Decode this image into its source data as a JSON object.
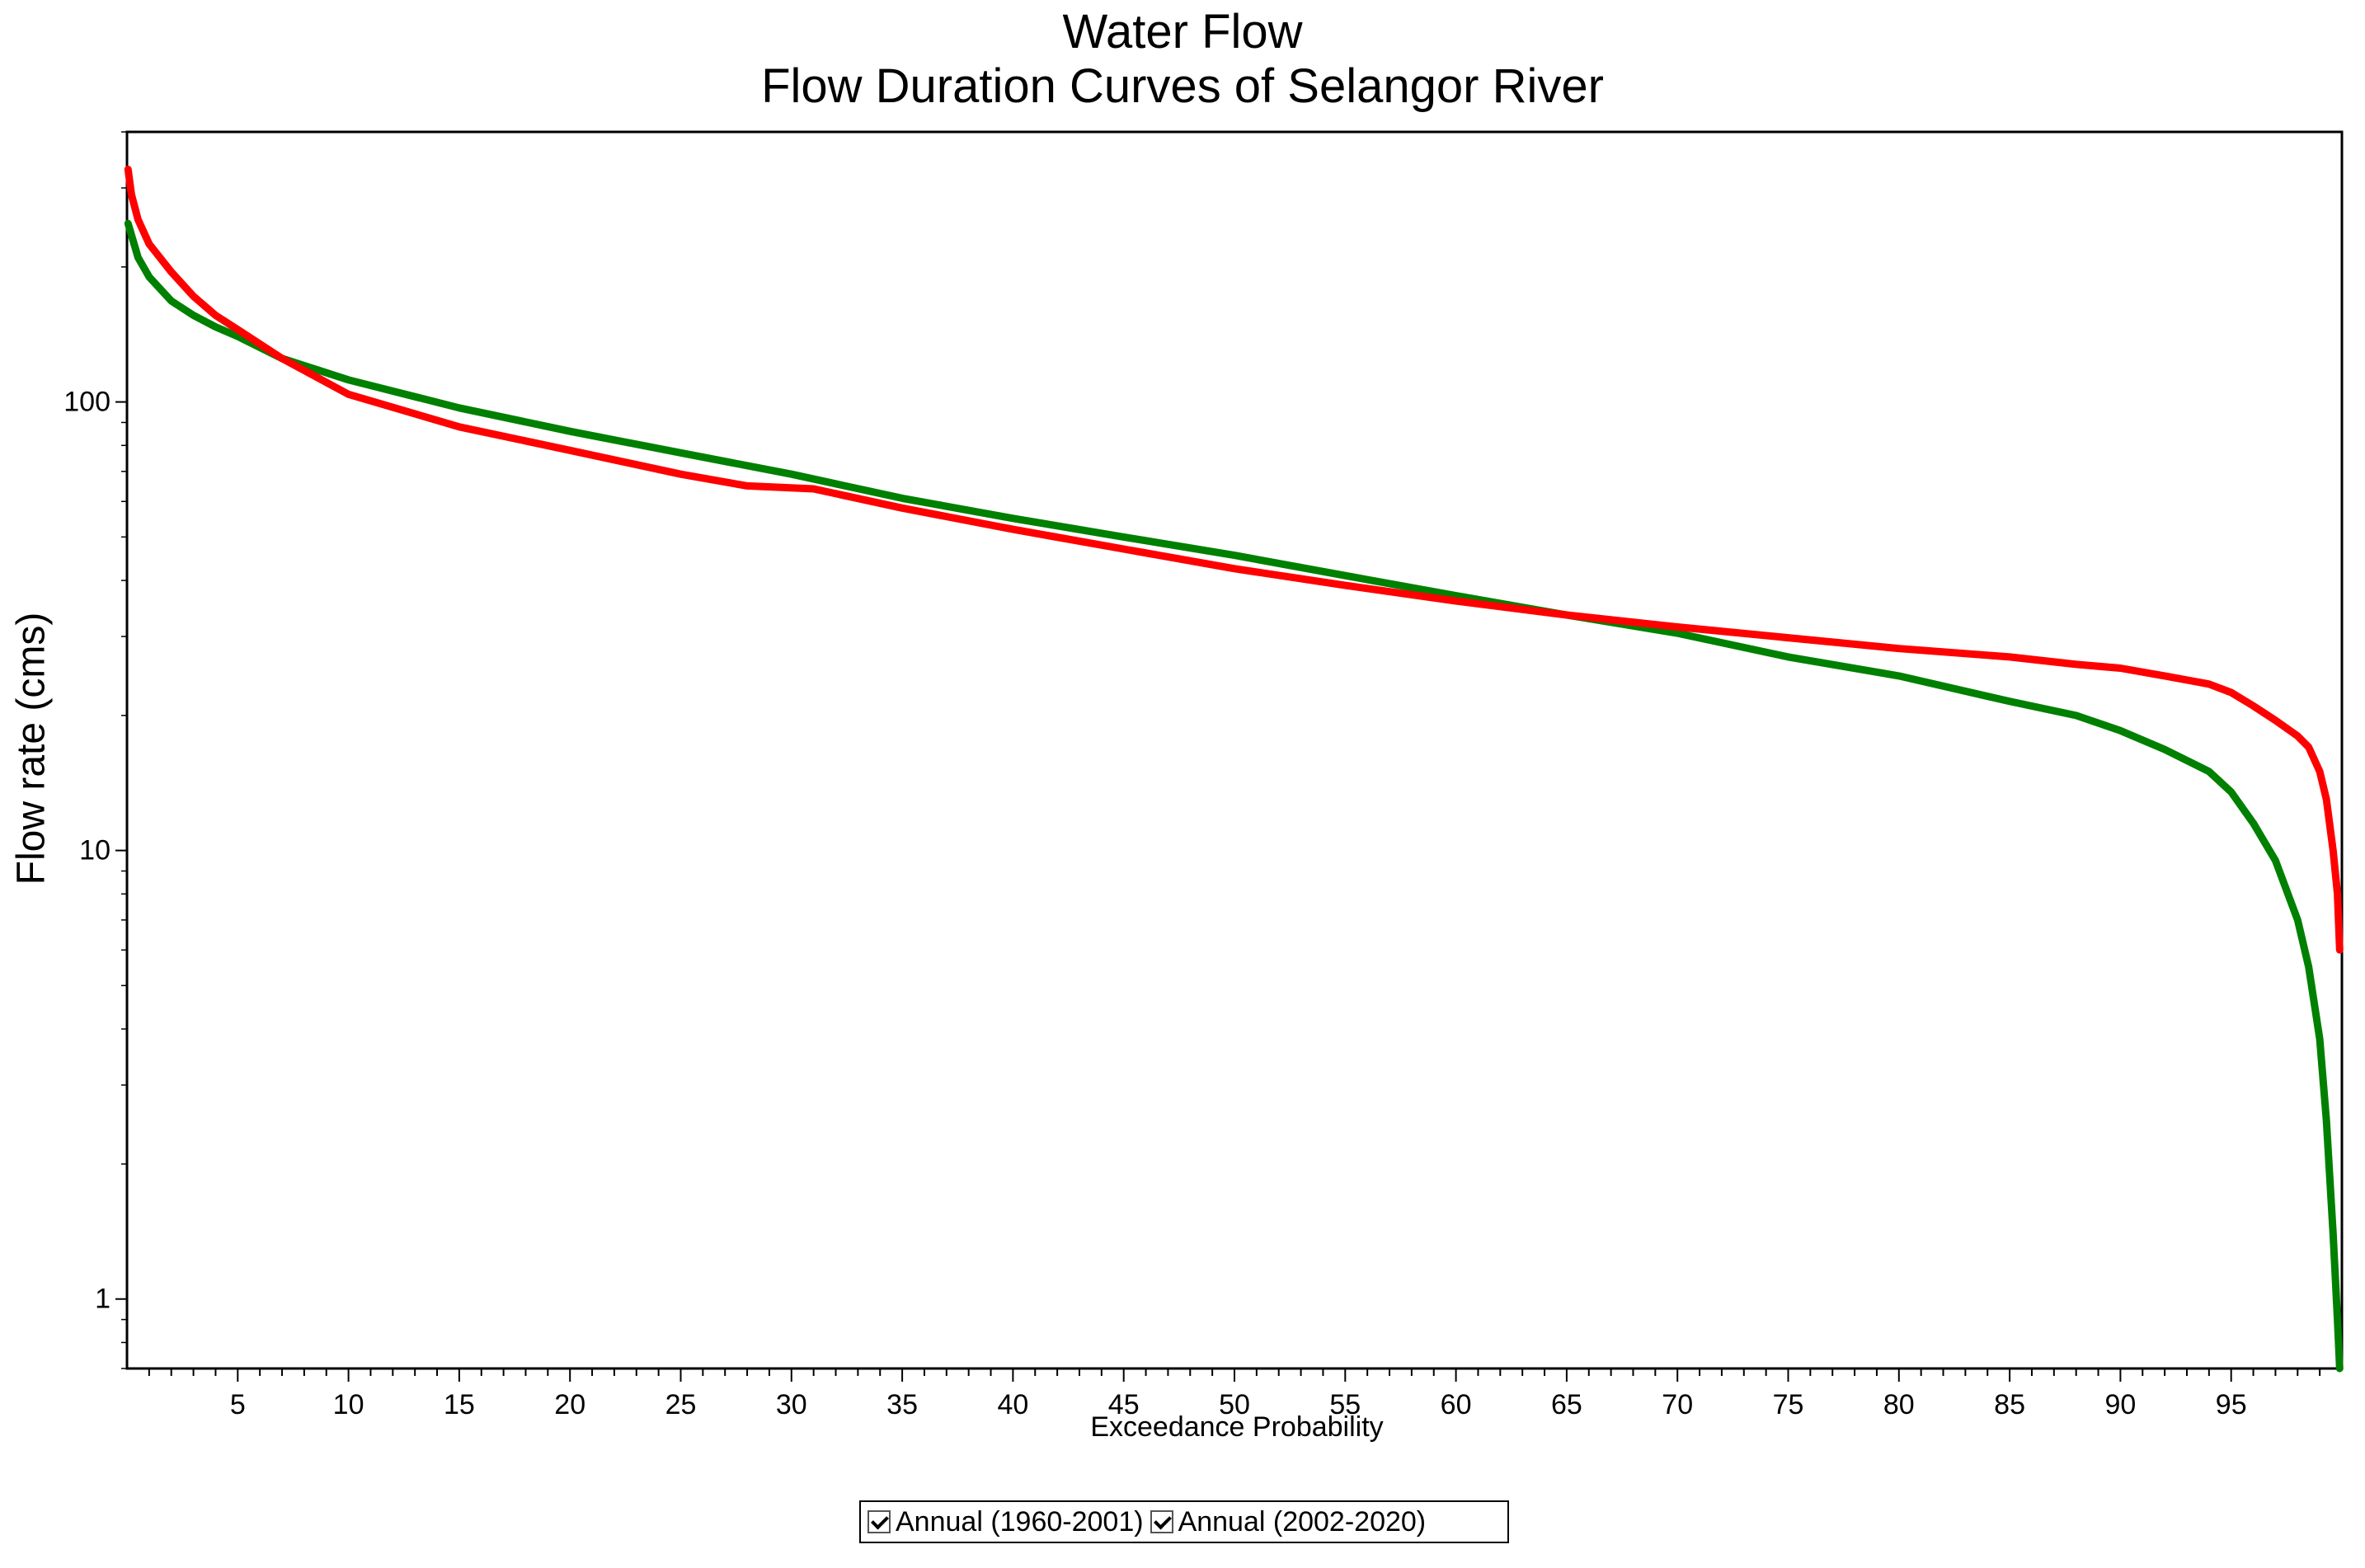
{
  "chart_data": {
    "type": "line",
    "title": "Water Flow",
    "subtitle": "Flow Duration Curves of Selangor River",
    "xlabel": "Exceedance Probability",
    "ylabel": "Flow rate (cms)",
    "xlim": [
      0,
      100
    ],
    "ylim": [
      0.7,
      400
    ],
    "yscale": "log",
    "x_ticks": [
      5,
      10,
      15,
      20,
      25,
      30,
      35,
      40,
      45,
      50,
      55,
      60,
      65,
      70,
      75,
      80,
      85,
      90,
      95
    ],
    "x_tick_labels": [
      "5",
      "10",
      "15",
      "20",
      "25",
      "30",
      "35",
      "40",
      "45",
      "50",
      "55",
      "60",
      "65",
      "70",
      "75",
      "80",
      "85",
      "90",
      "95"
    ],
    "y_ticks": [
      1,
      10,
      100
    ],
    "y_tick_labels": [
      "1",
      "10",
      "100"
    ],
    "grid": false,
    "legend_position": "bottom-center",
    "series": [
      {
        "name": "Annual (1960-2001)",
        "color": "#008000",
        "x": [
          0.05,
          0.5,
          1,
          2,
          3,
          4,
          5,
          7,
          10,
          15,
          20,
          25,
          30,
          35,
          40,
          45,
          50,
          55,
          60,
          65,
          70,
          75,
          80,
          85,
          88,
          90,
          92,
          94,
          95,
          96,
          97,
          98,
          98.5,
          99,
          99.3,
          99.6,
          99.8,
          99.9
        ],
        "values": [
          250,
          210,
          190,
          168,
          156,
          147,
          140,
          125,
          112,
          97,
          86,
          77,
          69,
          61,
          55,
          50,
          45.5,
          41,
          37,
          33.5,
          30.5,
          27,
          24.5,
          21.5,
          20,
          18.5,
          16.8,
          15,
          13.5,
          11.5,
          9.5,
          7,
          5.5,
          3.8,
          2.5,
          1.4,
          0.9,
          0.7
        ]
      },
      {
        "name": "Annual (2002-2020)",
        "color": "#ff0000",
        "x": [
          0.05,
          0.2,
          0.5,
          1,
          2,
          3,
          4,
          5,
          7,
          10,
          15,
          20,
          25,
          28,
          31,
          35,
          40,
          45,
          50,
          55,
          60,
          65,
          70,
          75,
          80,
          85,
          88,
          90,
          92,
          94,
          95,
          96,
          97,
          98,
          98.5,
          99,
          99.3,
          99.6,
          99.8,
          99.9
        ],
        "values": [
          330,
          290,
          255,
          225,
          195,
          172,
          156,
          145,
          125,
          104,
          88,
          78,
          69,
          65,
          64,
          58,
          52,
          47,
          42.5,
          39,
          36,
          33.5,
          31.5,
          29.8,
          28.2,
          27,
          26,
          25.5,
          24.5,
          23.5,
          22.5,
          21,
          19.5,
          18,
          17,
          15,
          13,
          10,
          8,
          6
        ]
      }
    ]
  }
}
